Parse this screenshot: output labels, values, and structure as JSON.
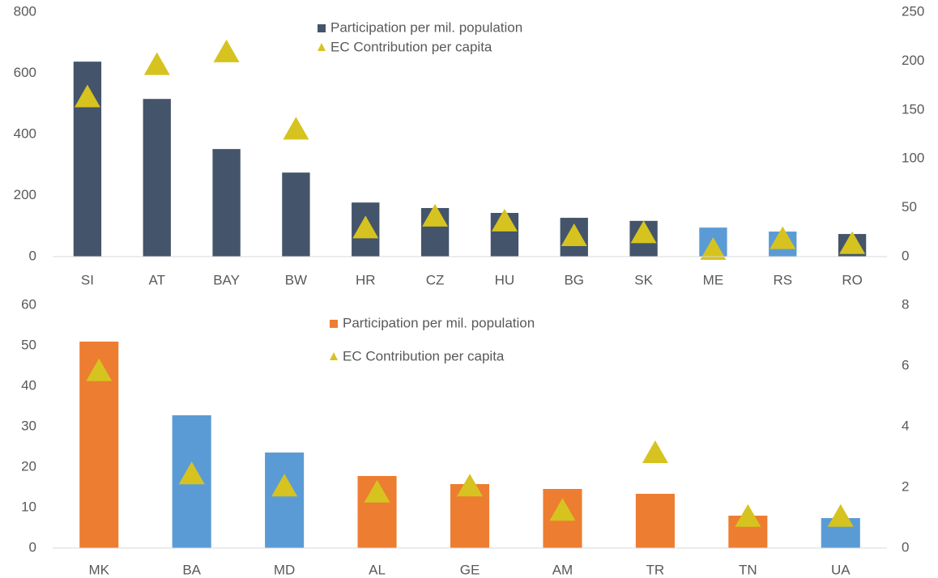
{
  "chart_data": [
    {
      "type": "bar",
      "categories": [
        "SI",
        "AT",
        "BAY",
        "BW",
        "HR",
        "CZ",
        "HU",
        "BG",
        "SK",
        "ME",
        "RS",
        "RO"
      ],
      "series": [
        {
          "name": "Participation per mil. population",
          "color": "#44546a",
          "colors": [
            "#44546a",
            "#44546a",
            "#44546a",
            "#44546a",
            "#44546a",
            "#44546a",
            "#44546a",
            "#44546a",
            "#44546a",
            "#5b9bd5",
            "#5b9bd5",
            "#44546a"
          ],
          "values": [
            638,
            516,
            352,
            275,
            177,
            159,
            143,
            127,
            117,
            95,
            82,
            74
          ]
        },
        {
          "name": "EC Contribution per capita",
          "color": "#d6c31f",
          "marker": "triangle",
          "axis": "y2",
          "values": [
            162,
            195,
            208,
            129,
            28,
            40,
            35,
            20,
            23,
            6,
            17,
            12
          ]
        }
      ],
      "ylim": [
        0,
        800
      ],
      "yticks": [
        0,
        200,
        400,
        600,
        800
      ],
      "y2lim": [
        0,
        250
      ],
      "y2ticks": [
        0,
        50,
        100,
        150,
        200,
        250
      ],
      "grid": false,
      "legend": "top-center"
    },
    {
      "type": "bar",
      "categories": [
        "MK",
        "BA",
        "MD",
        "AL",
        "GE",
        "AM",
        "TR",
        "TN",
        "UA"
      ],
      "series": [
        {
          "name": "Participation per mil. population",
          "color": "#ed7d31",
          "colors": [
            "#ed7d31",
            "#5b9bd5",
            "#5b9bd5",
            "#ed7d31",
            "#ed7d31",
            "#ed7d31",
            "#ed7d31",
            "#ed7d31",
            "#5b9bd5"
          ],
          "values": [
            51,
            32.8,
            23.6,
            17.8,
            15.8,
            14.6,
            13.4,
            8,
            7.4
          ]
        },
        {
          "name": "EC Contribution per capita",
          "color": "#d6c31f",
          "marker": "triangle",
          "axis": "y2",
          "values": [
            5.8,
            2.4,
            2.0,
            1.8,
            2.0,
            1.2,
            3.1,
            1.0,
            1.0
          ]
        }
      ],
      "ylim": [
        0,
        60
      ],
      "yticks": [
        0,
        10,
        20,
        30,
        40,
        50,
        60
      ],
      "y2lim": [
        0,
        8
      ],
      "y2ticks": [
        0,
        2,
        4,
        6,
        8
      ],
      "grid": false,
      "legend": "top-center"
    }
  ]
}
